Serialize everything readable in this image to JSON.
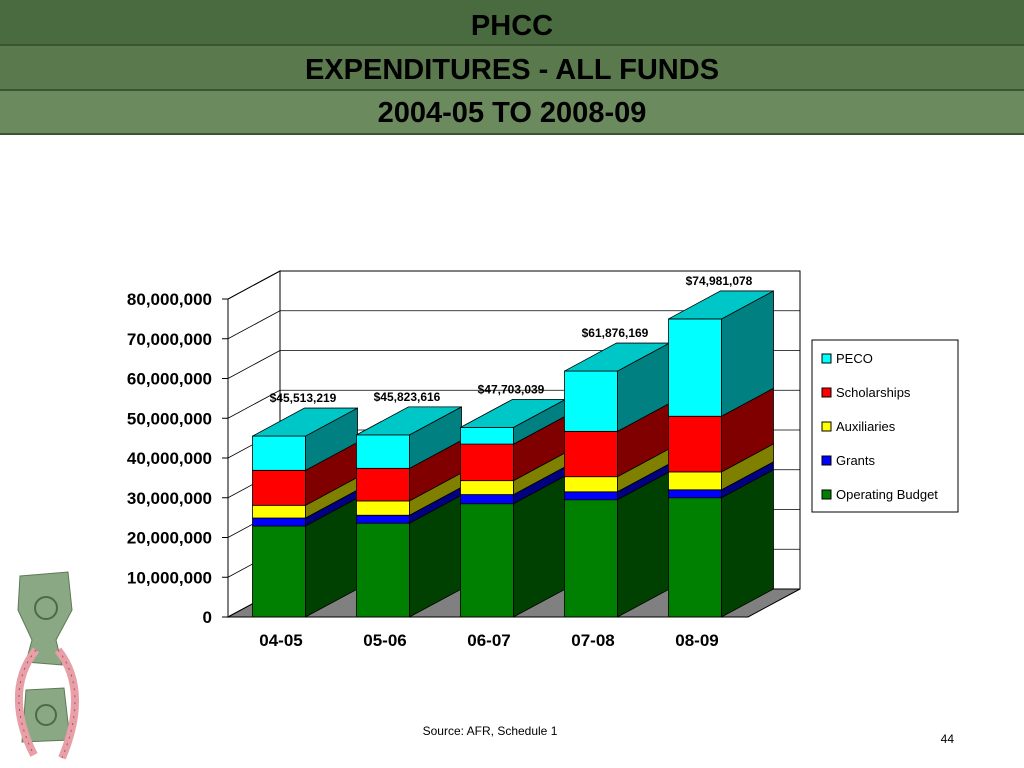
{
  "slide": {
    "title_lines": [
      "PHCC",
      "EXPENDITURES - ALL FUNDS",
      "2004-05 TO 2008-09"
    ],
    "source": "Source: AFR, Schedule 1",
    "page_number": "44"
  },
  "chart_data": {
    "type": "bar",
    "stacked": true,
    "three_d": true,
    "categories": [
      "04-05",
      "05-06",
      "06-07",
      "07-08",
      "08-09"
    ],
    "series": [
      {
        "name": "Operating Budget",
        "color": "#008000",
        "values": [
          22900000,
          23600000,
          28500000,
          29500000,
          30000000
        ]
      },
      {
        "name": "Grants",
        "color": "#0000ff",
        "values": [
          2000000,
          2000000,
          2300000,
          2000000,
          2000000
        ]
      },
      {
        "name": "Auxiliaries",
        "color": "#ffff00",
        "values": [
          3200000,
          3600000,
          3500000,
          3800000,
          4500000
        ]
      },
      {
        "name": "Scholarships",
        "color": "#ff0000",
        "values": [
          8800000,
          8200000,
          9200000,
          11400000,
          14000000
        ]
      },
      {
        "name": "PECO",
        "color": "#00ffff",
        "values": [
          8613219,
          8423616,
          4203039,
          15176169,
          24481078
        ]
      }
    ],
    "totals": [
      45513219,
      45823616,
      47703039,
      61876169,
      74981078
    ],
    "total_labels": [
      "$45,513,219",
      "$45,823,616",
      "$47,703,039",
      "$61,876,169",
      "$74,981,078"
    ],
    "y_ticks": [
      "0",
      "10,000,000",
      "20,000,000",
      "30,000,000",
      "40,000,000",
      "50,000,000",
      "60,000,000",
      "70,000,000",
      "80,000,000"
    ],
    "ylim": [
      0,
      80000000
    ],
    "grid": true,
    "legend_position": "right",
    "legend_order": [
      "PECO",
      "Scholarships",
      "Auxiliaries",
      "Grants",
      "Operating Budget"
    ]
  }
}
